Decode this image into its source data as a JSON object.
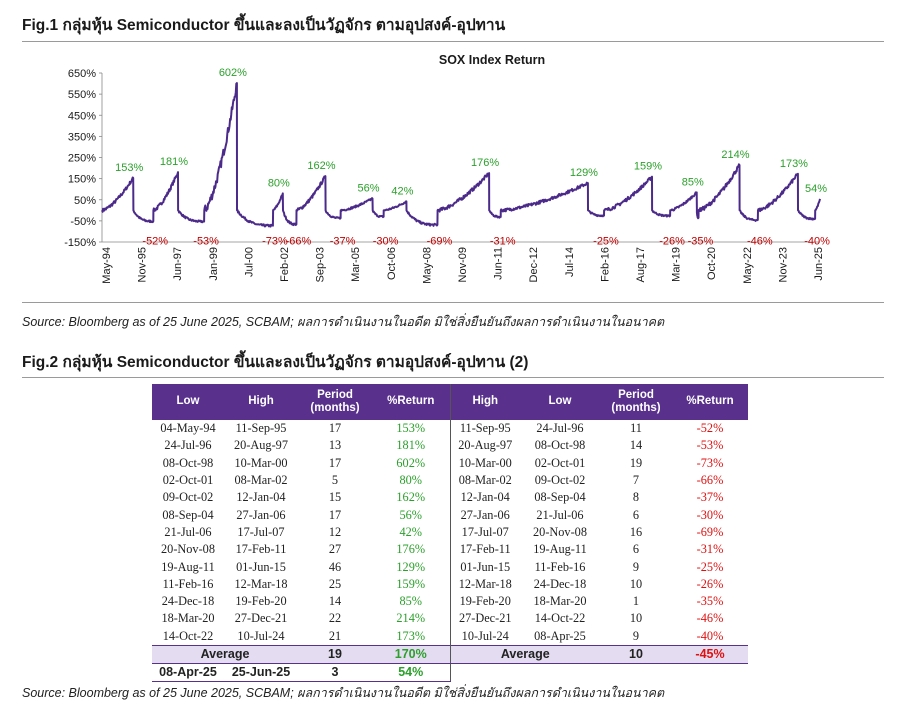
{
  "fig1": {
    "title": "Fig.1 กลุ่มหุ้น Semiconductor ขึ้นและลงเป็นวัฏจักร ตามอุปสงค์-อุปทาน",
    "source": "Source: Bloomberg as of 25 June 2025, SCBAM; ผลการดำเนินงานในอดีต มิใช่สิ่งยืนยันถึงผลการดำเนินงานในอนาคต"
  },
  "fig2": {
    "title": "Fig.2 กลุ่มหุ้น Semiconductor ขึ้นและลงเป็นวัฏจักร ตามอุปสงค์-อุปทาน (2)",
    "source": "Source: Bloomberg as of 25 June 2025, SCBAM; ผลการดำเนินงานในอดีต มิใช่สิ่งยืนยันถึงผลการดำเนินงานในอนาคต"
  },
  "chart_data": {
    "type": "line",
    "title": "SOX Index Return",
    "series_color": "#4b2a8a",
    "positive_label_color": "#2ba02b",
    "negative_label_color": "#c00000",
    "y_ticks": [
      "650%",
      "550%",
      "450%",
      "350%",
      "250%",
      "150%",
      "50%",
      "-50%",
      "-150%"
    ],
    "y_tick_values": [
      650,
      550,
      450,
      350,
      250,
      150,
      50,
      -50,
      -150
    ],
    "ylim": [
      -150,
      650
    ],
    "x_ticks": [
      "May-94",
      "Nov-95",
      "Jun-97",
      "Jan-99",
      "Jul-00",
      "Feb-02",
      "Sep-03",
      "Mar-05",
      "Oct-06",
      "May-08",
      "Nov-09",
      "Jun-11",
      "Dec-12",
      "Jul-14",
      "Feb-16",
      "Aug-17",
      "Mar-19",
      "Oct-20",
      "May-22",
      "Nov-23",
      "Jun-25"
    ],
    "x_range": [
      "1994-05-04",
      "2025-06-25"
    ],
    "x": [
      "1994-05-04",
      "1995-09-11",
      "1996-07-24",
      "1997-08-20",
      "1998-10-08",
      "2000-03-10",
      "2001-10-02",
      "2002-03-08",
      "2002-10-09",
      "2004-01-12",
      "2004-09-08",
      "2006-01-27",
      "2006-07-21",
      "2007-07-17",
      "2008-11-20",
      "2011-02-17",
      "2011-08-19",
      "2015-06-01",
      "2016-02-11",
      "2018-03-12",
      "2018-12-24",
      "2020-02-19",
      "2020-03-18",
      "2021-12-27",
      "2022-10-14",
      "2024-07-10",
      "2025-04-08",
      "2025-06-25"
    ],
    "values": [
      0,
      153,
      -52,
      181,
      -53,
      602,
      -73,
      80,
      -66,
      162,
      -37,
      56,
      -30,
      42,
      -69,
      176,
      -31,
      129,
      -25,
      159,
      -26,
      85,
      -35,
      214,
      -46,
      173,
      -40,
      54
    ],
    "labels": [
      "",
      "153%",
      "-52%",
      "181%",
      "-53%",
      "602%",
      "-73%",
      "80%",
      "-66%",
      "162%",
      "-37%",
      "56%",
      "-30%",
      "42%",
      "-69%",
      "176%",
      "-31%",
      "129%",
      "-25%",
      "159%",
      "-26%",
      "85%",
      "-35%",
      "214%",
      "-46%",
      "173%",
      "-40%",
      "54%"
    ]
  },
  "table": {
    "headers": [
      "Low",
      "High",
      "Period (months)",
      "%Return",
      "High",
      "Low",
      "Period (months)",
      "%Return"
    ],
    "rows": [
      [
        "04-May-94",
        "11-Sep-95",
        "17",
        "153%",
        "11-Sep-95",
        "24-Jul-96",
        "11",
        "-52%"
      ],
      [
        "24-Jul-96",
        "20-Aug-97",
        "13",
        "181%",
        "20-Aug-97",
        "08-Oct-98",
        "14",
        "-53%"
      ],
      [
        "08-Oct-98",
        "10-Mar-00",
        "17",
        "602%",
        "10-Mar-00",
        "02-Oct-01",
        "19",
        "-73%"
      ],
      [
        "02-Oct-01",
        "08-Mar-02",
        "5",
        "80%",
        "08-Mar-02",
        "09-Oct-02",
        "7",
        "-66%"
      ],
      [
        "09-Oct-02",
        "12-Jan-04",
        "15",
        "162%",
        "12-Jan-04",
        "08-Sep-04",
        "8",
        "-37%"
      ],
      [
        "08-Sep-04",
        "27-Jan-06",
        "17",
        "56%",
        "27-Jan-06",
        "21-Jul-06",
        "6",
        "-30%"
      ],
      [
        "21-Jul-06",
        "17-Jul-07",
        "12",
        "42%",
        "17-Jul-07",
        "20-Nov-08",
        "16",
        "-69%"
      ],
      [
        "20-Nov-08",
        "17-Feb-11",
        "27",
        "176%",
        "17-Feb-11",
        "19-Aug-11",
        "6",
        "-31%"
      ],
      [
        "19-Aug-11",
        "01-Jun-15",
        "46",
        "129%",
        "01-Jun-15",
        "11-Feb-16",
        "9",
        "-25%"
      ],
      [
        "11-Feb-16",
        "12-Mar-18",
        "25",
        "159%",
        "12-Mar-18",
        "24-Dec-18",
        "10",
        "-26%"
      ],
      [
        "24-Dec-18",
        "19-Feb-20",
        "14",
        "85%",
        "19-Feb-20",
        "18-Mar-20",
        "1",
        "-35%"
      ],
      [
        "18-Mar-20",
        "27-Dec-21",
        "22",
        "214%",
        "27-Dec-21",
        "14-Oct-22",
        "10",
        "-46%"
      ],
      [
        "14-Oct-22",
        "10-Jul-24",
        "21",
        "173%",
        "10-Jul-24",
        "08-Apr-25",
        "9",
        "-40%"
      ]
    ],
    "average": {
      "label_left": "Average",
      "period_left": "19",
      "return_left": "170%",
      "label_right": "Average",
      "period_right": "10",
      "return_right": "-45%"
    },
    "current": {
      "low": "08-Apr-25",
      "high": "25-Jun-25",
      "period": "3",
      "return": "54%"
    }
  }
}
